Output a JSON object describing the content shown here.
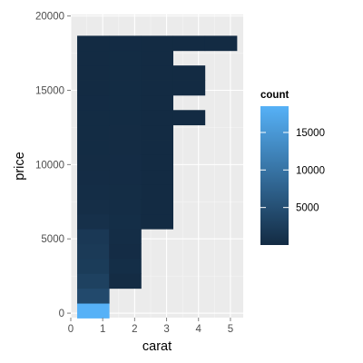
{
  "chart_data": {
    "type": "heatmap",
    "title": "",
    "xlabel": "carat",
    "ylabel": "price",
    "xlim": [
      0,
      5.4
    ],
    "ylim": [
      -300,
      20100
    ],
    "x_ticks": [
      0,
      1,
      2,
      3,
      4,
      5
    ],
    "y_ticks": [
      0,
      5000,
      10000,
      15000,
      20000
    ],
    "x_tick_labels": [
      "0",
      "1",
      "2",
      "3",
      "4",
      "5"
    ],
    "y_tick_labels": [
      "0",
      "5000",
      "10000",
      "15000",
      "20000"
    ],
    "grid": true,
    "bin_width": {
      "carat": 1.0,
      "price": 1000
    },
    "fill_scale": {
      "low_color": "#132B43",
      "high_color": "#56B1F7",
      "min": 1,
      "max": 18500
    },
    "legend": {
      "title": "count",
      "position": "right",
      "breaks": [
        5000,
        10000,
        15000
      ],
      "labels": [
        "5000",
        "10000",
        "15000"
      ]
    },
    "rows": [
      {
        "price_range": [
          -330,
          670
        ],
        "segments": [
          {
            "carat_range": [
              0.2,
              1.2
            ],
            "count": 18500
          }
        ]
      },
      {
        "price_range": [
          670,
          1670
        ],
        "segments": [
          {
            "carat_range": [
              0.2,
              1.2
            ],
            "count": 4200
          }
        ]
      },
      {
        "price_range": [
          1670,
          2670
        ],
        "segments": [
          {
            "carat_range": [
              0.2,
              1.2
            ],
            "count": 3000
          },
          {
            "carat_range": [
              1.2,
              2.2
            ],
            "count": 150
          }
        ]
      },
      {
        "price_range": [
          2670,
          3670
        ],
        "segments": [
          {
            "carat_range": [
              0.2,
              1.2
            ],
            "count": 2300
          },
          {
            "carat_range": [
              1.2,
              2.2
            ],
            "count": 400
          }
        ]
      },
      {
        "price_range": [
          3670,
          4670
        ],
        "segments": [
          {
            "carat_range": [
              0.2,
              1.2
            ],
            "count": 2100
          },
          {
            "carat_range": [
              1.2,
              2.2
            ],
            "count": 200
          }
        ]
      },
      {
        "price_range": [
          4670,
          5670
        ],
        "segments": [
          {
            "carat_range": [
              0.2,
              1.2
            ],
            "count": 1800
          },
          {
            "carat_range": [
              1.2,
              2.2
            ],
            "count": 300
          }
        ]
      },
      {
        "price_range": [
          5670,
          6670
        ],
        "segments": [
          {
            "carat_range": [
              0.2,
              1.2
            ],
            "count": 700
          },
          {
            "carat_range": [
              1.2,
              2.2
            ],
            "count": 400
          },
          {
            "carat_range": [
              2.2,
              3.2
            ],
            "count": 20
          }
        ]
      },
      {
        "price_range": [
          6670,
          7670
        ],
        "segments": [
          {
            "carat_range": [
              0.2,
              1.2
            ],
            "count": 450
          },
          {
            "carat_range": [
              1.2,
              2.2
            ],
            "count": 300
          },
          {
            "carat_range": [
              2.2,
              3.2
            ],
            "count": 15
          }
        ]
      },
      {
        "price_range": [
          7670,
          8670
        ],
        "segments": [
          {
            "carat_range": [
              0.2,
              1.2
            ],
            "count": 300
          },
          {
            "carat_range": [
              1.2,
              2.2
            ],
            "count": 250
          },
          {
            "carat_range": [
              2.2,
              3.2
            ],
            "count": 10
          }
        ]
      },
      {
        "price_range": [
          8670,
          9670
        ],
        "segments": [
          {
            "carat_range": [
              0.2,
              1.2
            ],
            "count": 200
          },
          {
            "carat_range": [
              1.2,
              2.2
            ],
            "count": 200
          },
          {
            "carat_range": [
              2.2,
              3.2
            ],
            "count": 10
          }
        ]
      },
      {
        "price_range": [
          9670,
          10670
        ],
        "segments": [
          {
            "carat_range": [
              0.2,
              1.2
            ],
            "count": 150
          },
          {
            "carat_range": [
              1.2,
              2.2
            ],
            "count": 200
          },
          {
            "carat_range": [
              2.2,
              3.2
            ],
            "count": 15
          }
        ]
      },
      {
        "price_range": [
          10670,
          11670
        ],
        "segments": [
          {
            "carat_range": [
              0.2,
              1.2
            ],
            "count": 120
          },
          {
            "carat_range": [
              1.2,
              2.2
            ],
            "count": 150
          },
          {
            "carat_range": [
              2.2,
              3.2
            ],
            "count": 10
          }
        ]
      },
      {
        "price_range": [
          11670,
          12670
        ],
        "segments": [
          {
            "carat_range": [
              0.2,
              1.2
            ],
            "count": 100
          },
          {
            "carat_range": [
              1.2,
              2.2
            ],
            "count": 150
          },
          {
            "carat_range": [
              2.2,
              3.2
            ],
            "count": 10
          }
        ]
      },
      {
        "price_range": [
          12670,
          13670
        ],
        "segments": [
          {
            "carat_range": [
              0.2,
              1.2
            ],
            "count": 80
          },
          {
            "carat_range": [
              1.2,
              2.2
            ],
            "count": 120
          },
          {
            "carat_range": [
              2.2,
              3.2
            ],
            "count": 10
          },
          {
            "carat_range": [
              3.2,
              4.2
            ],
            "count": 2
          }
        ]
      },
      {
        "price_range": [
          13670,
          14670
        ],
        "segments": [
          {
            "carat_range": [
              0.2,
              1.2
            ],
            "count": 60
          },
          {
            "carat_range": [
              1.2,
              2.2
            ],
            "count": 100
          },
          {
            "carat_range": [
              2.2,
              3.2
            ],
            "count": 5
          }
        ]
      },
      {
        "price_range": [
          14670,
          15670
        ],
        "segments": [
          {
            "carat_range": [
              0.2,
              1.2
            ],
            "count": 50
          },
          {
            "carat_range": [
              1.2,
              2.2
            ],
            "count": 100
          },
          {
            "carat_range": [
              2.2,
              3.2
            ],
            "count": 5
          },
          {
            "carat_range": [
              3.2,
              4.2
            ],
            "count": 1
          }
        ]
      },
      {
        "price_range": [
          15670,
          16670
        ],
        "segments": [
          {
            "carat_range": [
              0.2,
              1.2
            ],
            "count": 40
          },
          {
            "carat_range": [
              1.2,
              2.2
            ],
            "count": 80
          },
          {
            "carat_range": [
              2.2,
              3.2
            ],
            "count": 5
          },
          {
            "carat_range": [
              3.2,
              4.2
            ],
            "count": 1
          }
        ]
      },
      {
        "price_range": [
          16670,
          17670
        ],
        "segments": [
          {
            "carat_range": [
              0.2,
              1.2
            ],
            "count": 30
          },
          {
            "carat_range": [
              1.2,
              2.2
            ],
            "count": 80
          },
          {
            "carat_range": [
              2.2,
              3.2
            ],
            "count": 5
          }
        ]
      },
      {
        "price_range": [
          17670,
          18670
        ],
        "segments": [
          {
            "carat_range": [
              0.2,
              1.2
            ],
            "count": 20
          },
          {
            "carat_range": [
              1.2,
              2.2
            ],
            "count": 60
          },
          {
            "carat_range": [
              2.2,
              3.2
            ],
            "count": 5
          },
          {
            "carat_range": [
              3.2,
              4.2
            ],
            "count": 1
          },
          {
            "carat_range": [
              4.2,
              5.2
            ],
            "count": 1
          }
        ]
      }
    ]
  }
}
